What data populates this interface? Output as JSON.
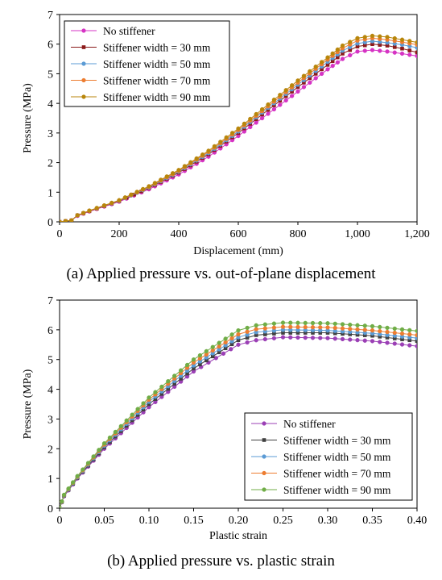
{
  "chart_data": [
    {
      "type": "line",
      "caption": "(a) Applied pressure vs. out-of-plane displacement",
      "xlabel": "Displacement (mm)",
      "ylabel": "Pressure (MPa)",
      "xlim": [
        0,
        1200
      ],
      "ylim": [
        0,
        7
      ],
      "xticks": [
        0,
        200,
        400,
        600,
        800,
        1000,
        1200
      ],
      "xtick_labels": [
        "0",
        "200",
        "400",
        "600",
        "800",
        "1,000",
        "1,200"
      ],
      "yticks": [
        0,
        1,
        2,
        3,
        4,
        5,
        6,
        7
      ],
      "ytick_labels": [
        "0",
        "1",
        "2",
        "3",
        "4",
        "5",
        "6",
        "7"
      ],
      "grid": false,
      "legend_position": "top-left",
      "series": [
        {
          "name": "No stiffener",
          "color": "#d633c4",
          "marker": "circle",
          "x": [
            0,
            40,
            60,
            100,
            200,
            300,
            400,
            500,
            600,
            700,
            800,
            900,
            950,
            1000,
            1050,
            1100,
            1150,
            1200
          ],
          "y": [
            0,
            0.05,
            0.2,
            0.35,
            0.68,
            1.1,
            1.6,
            2.2,
            2.9,
            3.65,
            4.4,
            5.15,
            5.5,
            5.75,
            5.8,
            5.75,
            5.68,
            5.6
          ]
        },
        {
          "name": "Stiffener width = 30 mm",
          "color": "#8b1a1a",
          "marker": "square",
          "x": [
            0,
            40,
            60,
            100,
            200,
            300,
            400,
            500,
            600,
            700,
            800,
            900,
            950,
            1000,
            1050,
            1100,
            1150,
            1200
          ],
          "y": [
            0,
            0.05,
            0.22,
            0.36,
            0.7,
            1.14,
            1.66,
            2.28,
            3.0,
            3.78,
            4.55,
            5.3,
            5.68,
            5.92,
            6.0,
            5.95,
            5.85,
            5.72
          ]
        },
        {
          "name": "Stiffener width = 50 mm",
          "color": "#5b9bd5",
          "marker": "circle",
          "x": [
            0,
            40,
            60,
            100,
            200,
            300,
            400,
            500,
            600,
            700,
            800,
            900,
            950,
            1000,
            1050,
            1100,
            1150,
            1200
          ],
          "y": [
            0,
            0.05,
            0.22,
            0.37,
            0.71,
            1.16,
            1.69,
            2.32,
            3.05,
            3.85,
            4.63,
            5.4,
            5.78,
            6.02,
            6.1,
            6.05,
            5.98,
            5.88
          ]
        },
        {
          "name": "Stiffener width = 70 mm",
          "color": "#ed7d31",
          "marker": "circle",
          "x": [
            0,
            40,
            60,
            100,
            200,
            300,
            400,
            500,
            600,
            700,
            800,
            900,
            950,
            1000,
            1050,
            1100,
            1150,
            1200
          ],
          "y": [
            0,
            0.05,
            0.22,
            0.37,
            0.72,
            1.18,
            1.72,
            2.36,
            3.1,
            3.9,
            4.7,
            5.48,
            5.86,
            6.12,
            6.2,
            6.15,
            6.07,
            5.98
          ]
        },
        {
          "name": "Stiffener width = 90 mm",
          "color": "#b8860b",
          "marker": "circle",
          "x": [
            0,
            40,
            60,
            100,
            200,
            300,
            400,
            500,
            600,
            700,
            800,
            900,
            950,
            1000,
            1050,
            1100,
            1150,
            1200
          ],
          "y": [
            0,
            0.05,
            0.22,
            0.38,
            0.73,
            1.2,
            1.75,
            2.4,
            3.15,
            3.96,
            4.77,
            5.55,
            5.95,
            6.2,
            6.28,
            6.24,
            6.15,
            6.06
          ]
        }
      ]
    },
    {
      "type": "line",
      "caption": "(b) Applied pressure vs. plastic strain",
      "xlabel": "Plastic strain",
      "ylabel": "Pressure (MPa)",
      "xlim": [
        0,
        0.4
      ],
      "ylim": [
        0,
        7
      ],
      "xticks": [
        0,
        0.05,
        0.1,
        0.15,
        0.2,
        0.25,
        0.3,
        0.35,
        0.4
      ],
      "xtick_labels": [
        "0",
        "0.05",
        "0.10",
        "0.15",
        "0.20",
        "0.25",
        "0.30",
        "0.35",
        "0.40"
      ],
      "yticks": [
        0,
        1,
        2,
        3,
        4,
        5,
        6,
        7
      ],
      "ytick_labels": [
        "0",
        "1",
        "2",
        "3",
        "4",
        "5",
        "6",
        "7"
      ],
      "grid": false,
      "legend_position": "bottom-right",
      "series": [
        {
          "name": "No stiffener",
          "color": "#9b3fb5",
          "marker": "circle",
          "x": [
            0,
            0.005,
            0.02,
            0.05,
            0.1,
            0.15,
            0.2,
            0.22,
            0.25,
            0.3,
            0.35,
            0.4
          ],
          "y": [
            0,
            0.4,
            1.0,
            2.0,
            3.4,
            4.6,
            5.5,
            5.65,
            5.75,
            5.72,
            5.62,
            5.45
          ]
        },
        {
          "name": "Stiffener width = 30 mm",
          "color": "#404040",
          "marker": "square",
          "x": [
            0,
            0.005,
            0.02,
            0.05,
            0.1,
            0.15,
            0.2,
            0.22,
            0.25,
            0.3,
            0.35,
            0.4
          ],
          "y": [
            0,
            0.42,
            1.02,
            2.05,
            3.5,
            4.7,
            5.65,
            5.82,
            5.9,
            5.9,
            5.8,
            5.62
          ]
        },
        {
          "name": "Stiffener width = 50 mm",
          "color": "#5b9bd5",
          "marker": "circle",
          "x": [
            0,
            0.005,
            0.02,
            0.05,
            0.1,
            0.15,
            0.2,
            0.22,
            0.25,
            0.3,
            0.35,
            0.4
          ],
          "y": [
            0,
            0.43,
            1.04,
            2.1,
            3.58,
            4.8,
            5.75,
            5.92,
            6.0,
            5.98,
            5.88,
            5.72
          ]
        },
        {
          "name": "Stiffener width = 70 mm",
          "color": "#ed7d31",
          "marker": "circle",
          "x": [
            0,
            0.005,
            0.02,
            0.05,
            0.1,
            0.15,
            0.2,
            0.22,
            0.25,
            0.3,
            0.35,
            0.4
          ],
          "y": [
            0,
            0.44,
            1.06,
            2.14,
            3.65,
            4.9,
            5.85,
            6.02,
            6.1,
            6.08,
            5.98,
            5.82
          ]
        },
        {
          "name": "Stiffener width = 90 mm",
          "color": "#70ad47",
          "marker": "circle",
          "x": [
            0,
            0.005,
            0.02,
            0.05,
            0.1,
            0.15,
            0.2,
            0.22,
            0.25,
            0.3,
            0.35,
            0.4
          ],
          "y": [
            0,
            0.45,
            1.08,
            2.18,
            3.72,
            5.0,
            5.98,
            6.15,
            6.24,
            6.22,
            6.12,
            5.96
          ]
        }
      ]
    }
  ]
}
